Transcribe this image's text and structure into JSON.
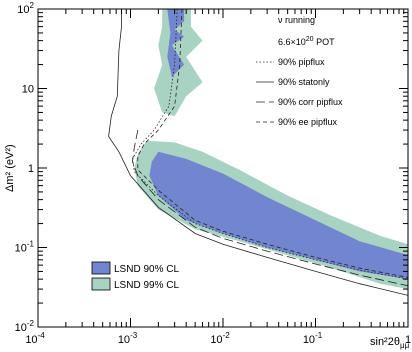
{
  "chart_data": {
    "type": "contour",
    "title": "",
    "xlabel": "sin²2θ",
    "xlabel_sub": "μμ",
    "ylabel": "Δm² (eV²)",
    "xscale": "log",
    "yscale": "log",
    "xlim": [
      0.0001,
      1
    ],
    "ylim": [
      0.01,
      100
    ],
    "x_ticks": [
      {
        "value": 0.0001,
        "label": "10",
        "exp": "-4"
      },
      {
        "value": 0.001,
        "label": "10",
        "exp": "-3"
      },
      {
        "value": 0.01,
        "label": "10",
        "exp": "-2"
      },
      {
        "value": 0.1,
        "label": "10",
        "exp": "-1"
      },
      {
        "value": 1,
        "label": "1",
        "exp": ""
      }
    ],
    "y_ticks": [
      {
        "value": 0.01,
        "label": "10",
        "exp": "-2"
      },
      {
        "value": 0.1,
        "label": "10",
        "exp": "-1"
      },
      {
        "value": 1,
        "label": "1",
        "exp": ""
      },
      {
        "value": 10,
        "label": "10",
        "exp": ""
      },
      {
        "value": 100,
        "label": "10",
        "exp": "2"
      }
    ],
    "annotations": {
      "running": "ν running",
      "pot_base": "6.6×10",
      "pot_exp": "20",
      "pot_unit": " POT"
    },
    "legend_lines": [
      {
        "label": "90% pipflux",
        "style": "dotted"
      },
      {
        "label": "90% statonly",
        "style": "solid"
      },
      {
        "label": "90% corr pipflux",
        "style": "longdash"
      },
      {
        "label": "90% ee pipflux",
        "style": "dashed"
      }
    ],
    "legend_regions": [
      {
        "label": "LSND 90% CL",
        "color": "#7285cf"
      },
      {
        "label": "LSND 99% CL",
        "color": "#a8d2c2"
      }
    ],
    "series": [
      {
        "name": "90% statonly",
        "points": [
          [
            0.0008,
            100
          ],
          [
            0.0008,
            60
          ],
          [
            0.00075,
            30
          ],
          [
            0.00072,
            8
          ],
          [
            0.00062,
            4.5
          ],
          [
            0.00058,
            2.5
          ],
          [
            0.00075,
            1.6
          ],
          [
            0.001,
            0.8
          ],
          [
            0.002,
            0.32
          ],
          [
            0.005,
            0.15
          ],
          [
            0.01,
            0.11
          ],
          [
            0.03,
            0.075
          ],
          [
            0.1,
            0.05
          ],
          [
            0.3,
            0.035
          ],
          [
            1,
            0.025
          ]
        ]
      },
      {
        "name": "90% pipflux",
        "points": [
          [
            0.0032,
            100
          ],
          [
            0.003,
            20
          ],
          [
            0.0026,
            6
          ],
          [
            0.0018,
            3
          ],
          [
            0.0013,
            2
          ],
          [
            0.00105,
            1.3
          ],
          [
            0.0011,
            0.9
          ],
          [
            0.002,
            0.45
          ],
          [
            0.005,
            0.2
          ],
          [
            0.01,
            0.15
          ],
          [
            0.03,
            0.1
          ],
          [
            0.1,
            0.07
          ],
          [
            0.3,
            0.052
          ],
          [
            1,
            0.04
          ]
        ]
      },
      {
        "name": "90% corr pipflux",
        "points": [
          [
            0.0012,
            3
          ],
          [
            0.0011,
            1.8
          ],
          [
            0.00105,
            1.2
          ],
          [
            0.0012,
            0.8
          ],
          [
            0.002,
            0.4
          ],
          [
            0.005,
            0.18
          ],
          [
            0.01,
            0.13
          ],
          [
            0.03,
            0.09
          ],
          [
            0.1,
            0.062
          ],
          [
            0.3,
            0.045
          ],
          [
            1,
            0.033
          ]
        ]
      },
      {
        "name": "90% ee pipflux",
        "points": [
          [
            0.0036,
            100
          ],
          [
            0.0034,
            20
          ],
          [
            0.003,
            6
          ],
          [
            0.002,
            3
          ],
          [
            0.0014,
            2
          ],
          [
            0.0012,
            1.4
          ],
          [
            0.0012,
            0.95
          ],
          [
            0.0021,
            0.5
          ],
          [
            0.005,
            0.22
          ],
          [
            0.01,
            0.16
          ],
          [
            0.03,
            0.11
          ],
          [
            0.1,
            0.075
          ],
          [
            0.3,
            0.055
          ],
          [
            1,
            0.042
          ]
        ]
      }
    ],
    "regions": [
      {
        "name": "LSND 99% CL",
        "points": [
          [
            0.0012,
            1.5
          ],
          [
            0.0015,
            2.2
          ],
          [
            0.003,
            2.1
          ],
          [
            0.006,
            1.6
          ],
          [
            0.015,
            0.95
          ],
          [
            0.05,
            0.45
          ],
          [
            0.15,
            0.25
          ],
          [
            0.5,
            0.14
          ],
          [
            1,
            0.11
          ],
          [
            1,
            0.03
          ],
          [
            0.5,
            0.035
          ],
          [
            0.15,
            0.055
          ],
          [
            0.05,
            0.08
          ],
          [
            0.015,
            0.12
          ],
          [
            0.005,
            0.17
          ],
          [
            0.002,
            0.3
          ],
          [
            0.0012,
            0.6
          ],
          [
            0.0011,
            1.0
          ]
        ]
      },
      {
        "name": "LSND 99% CL",
        "points": [
          [
            0.0022,
            100
          ],
          [
            0.0045,
            100
          ],
          [
            0.0045,
            60
          ],
          [
            0.006,
            40
          ],
          [
            0.004,
            25
          ],
          [
            0.006,
            12
          ],
          [
            0.004,
            8
          ],
          [
            0.003,
            4.5
          ],
          [
            0.0022,
            5
          ],
          [
            0.0018,
            10
          ],
          [
            0.0022,
            20
          ],
          [
            0.002,
            35
          ],
          [
            0.0022,
            60
          ]
        ]
      },
      {
        "name": "LSND 90% CL",
        "points": [
          [
            0.0017,
            1.2
          ],
          [
            0.002,
            1.6
          ],
          [
            0.004,
            1.3
          ],
          [
            0.01,
            0.85
          ],
          [
            0.03,
            0.43
          ],
          [
            0.1,
            0.22
          ],
          [
            0.3,
            0.12
          ],
          [
            1,
            0.08
          ],
          [
            1,
            0.04
          ],
          [
            0.3,
            0.05
          ],
          [
            0.1,
            0.07
          ],
          [
            0.03,
            0.1
          ],
          [
            0.01,
            0.15
          ],
          [
            0.004,
            0.22
          ],
          [
            0.002,
            0.45
          ],
          [
            0.0016,
            0.8
          ]
        ]
      },
      {
        "name": "LSND 90% CL",
        "points": [
          [
            0.0025,
            100
          ],
          [
            0.0038,
            100
          ],
          [
            0.0038,
            70
          ],
          [
            0.003,
            55
          ],
          [
            0.0038,
            45
          ],
          [
            0.0028,
            35
          ],
          [
            0.0038,
            20
          ],
          [
            0.0028,
            14
          ],
          [
            0.0025,
            25
          ],
          [
            0.0027,
            50
          ]
        ]
      }
    ]
  }
}
